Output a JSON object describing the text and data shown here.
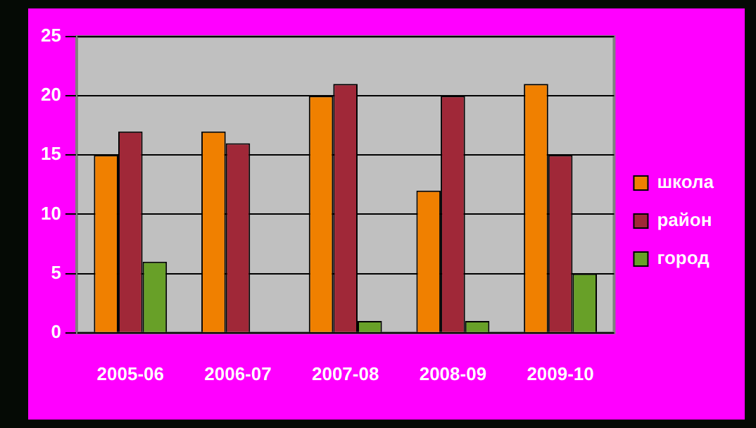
{
  "chart_data": {
    "type": "bar",
    "categories": [
      "2005-06",
      "2006-07",
      "2007-08",
      "2008-09",
      "2009-10"
    ],
    "series": [
      {
        "name": "школа",
        "color": "#f08000",
        "values": [
          15,
          17,
          20,
          12,
          21
        ]
      },
      {
        "name": "район",
        "color": "#a02838",
        "values": [
          17,
          16,
          21,
          20,
          15
        ]
      },
      {
        "name": "город",
        "color": "#68a028",
        "values": [
          6,
          0,
          1,
          1,
          5
        ]
      }
    ],
    "ylim": [
      0,
      25
    ],
    "yticks": [
      0,
      5,
      10,
      15,
      20,
      25
    ],
    "grid": "y",
    "legend": "right"
  }
}
